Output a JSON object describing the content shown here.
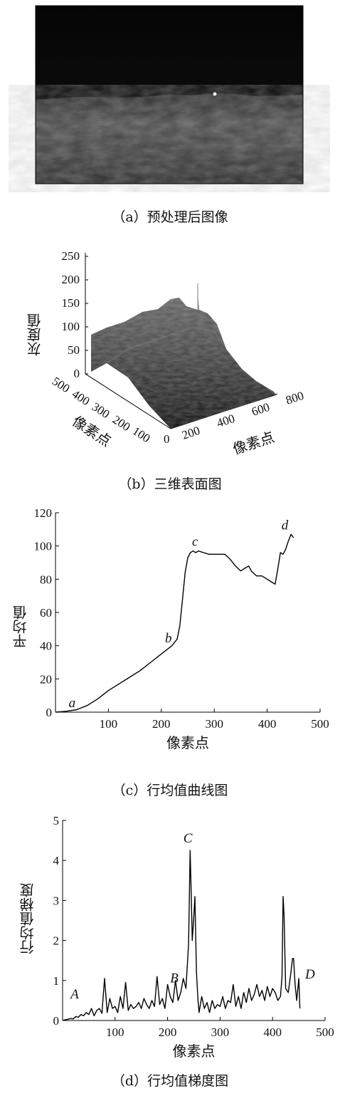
{
  "panel_a": {
    "caption": "（a）预处理后图像"
  },
  "panel_b": {
    "caption": "（b）三维表面图",
    "zlabel": "灰度值",
    "xlabel": "像素点",
    "ylabel": "像素点",
    "z_ticks": [
      "0",
      "50",
      "100",
      "150",
      "200",
      "250"
    ],
    "left_ticks": [
      "500",
      "400",
      "300",
      "200",
      "100",
      "0"
    ],
    "right_ticks": [
      "200",
      "400",
      "600",
      "800"
    ]
  },
  "chart_data": [
    {
      "type": "line",
      "title": "（c）行均值曲线图",
      "xlabel": "像素点",
      "ylabel": "平均值",
      "xlim": [
        0,
        500
      ],
      "ylim": [
        0,
        120
      ],
      "x_ticks": [
        "100",
        "200",
        "300",
        "400",
        "500"
      ],
      "y_ticks": [
        "0",
        "20",
        "40",
        "60",
        "80",
        "100",
        "120"
      ],
      "annotations": [
        {
          "text": "a",
          "x": 25,
          "y": 3
        },
        {
          "text": "b",
          "x": 207,
          "y": 42
        },
        {
          "text": "c",
          "x": 258,
          "y": 100
        },
        {
          "text": "d",
          "x": 427,
          "y": 110
        }
      ],
      "x": [
        0,
        20,
        40,
        60,
        80,
        100,
        120,
        140,
        160,
        180,
        200,
        220,
        230,
        235,
        240,
        245,
        250,
        255,
        260,
        265,
        270,
        280,
        290,
        300,
        310,
        320,
        330,
        340,
        350,
        360,
        365,
        370,
        380,
        390,
        400,
        410,
        415,
        420,
        425,
        430,
        435,
        440,
        445,
        450
      ],
      "values": [
        0,
        0.5,
        1.5,
        4,
        8,
        13,
        17,
        21,
        25,
        30,
        35,
        40,
        44,
        52,
        68,
        84,
        93,
        96,
        97,
        96,
        97,
        96,
        95,
        95,
        95,
        95,
        92,
        88,
        85,
        87,
        88,
        85,
        82,
        82,
        80,
        78,
        77,
        86,
        96,
        95,
        98,
        103,
        107,
        105
      ]
    },
    {
      "type": "line",
      "title": "（d）行均值梯度图",
      "xlabel": "像素点",
      "ylabel": "行均值梯度",
      "xlim": [
        0,
        500
      ],
      "ylim": [
        0,
        5
      ],
      "x_ticks": [
        "100",
        "200",
        "300",
        "400",
        "500"
      ],
      "y_ticks": [
        "0",
        "1",
        "2",
        "3",
        "4",
        "5"
      ],
      "annotations": [
        {
          "text": "A",
          "x": 15,
          "y": 0.55
        },
        {
          "text": "B",
          "x": 205,
          "y": 0.95
        },
        {
          "text": "C",
          "x": 230,
          "y": 4.45
        },
        {
          "text": "D",
          "x": 462,
          "y": 1.05
        }
      ],
      "x": [
        0,
        5,
        10,
        15,
        20,
        25,
        30,
        35,
        40,
        45,
        50,
        55,
        60,
        65,
        70,
        75,
        80,
        85,
        90,
        95,
        100,
        105,
        110,
        115,
        120,
        125,
        130,
        135,
        140,
        145,
        150,
        155,
        160,
        165,
        170,
        175,
        180,
        185,
        190,
        195,
        200,
        205,
        210,
        215,
        220,
        225,
        230,
        235,
        240,
        243,
        245,
        247,
        250,
        252,
        255,
        258,
        260,
        265,
        270,
        275,
        280,
        285,
        290,
        295,
        300,
        305,
        310,
        315,
        320,
        325,
        330,
        335,
        340,
        345,
        350,
        355,
        360,
        365,
        370,
        375,
        380,
        385,
        390,
        395,
        400,
        405,
        410,
        415,
        418,
        420,
        422,
        425,
        430,
        435,
        438,
        440,
        443,
        446,
        450,
        452
      ],
      "values": [
        0,
        0.02,
        0.03,
        0.05,
        0.04,
        0.1,
        0.08,
        0.15,
        0.12,
        0.2,
        0.15,
        0.3,
        0.12,
        0.25,
        0.3,
        0.18,
        1.05,
        0.2,
        0.55,
        0.3,
        0.35,
        0.2,
        0.6,
        0.3,
        0.95,
        0.25,
        0.4,
        0.3,
        0.35,
        0.45,
        0.3,
        0.55,
        0.4,
        0.3,
        0.5,
        0.35,
        1.1,
        0.4,
        0.55,
        0.3,
        0.9,
        0.6,
        0.45,
        1.0,
        0.5,
        0.7,
        1.05,
        0.8,
        1.9,
        4.25,
        3.2,
        2.0,
        2.6,
        3.1,
        1.2,
        0.5,
        0.2,
        0.6,
        0.3,
        0.45,
        0.2,
        0.5,
        0.3,
        0.4,
        0.35,
        0.6,
        0.3,
        0.5,
        0.45,
        0.9,
        0.35,
        0.6,
        0.3,
        0.7,
        0.45,
        0.8,
        0.5,
        0.65,
        0.9,
        0.6,
        0.75,
        0.5,
        0.85,
        0.6,
        0.8,
        0.7,
        0.5,
        0.6,
        1.1,
        3.1,
        2.6,
        0.8,
        0.7,
        1.2,
        1.55,
        1.55,
        0.9,
        0.5,
        1.05,
        0.3
      ]
    }
  ]
}
